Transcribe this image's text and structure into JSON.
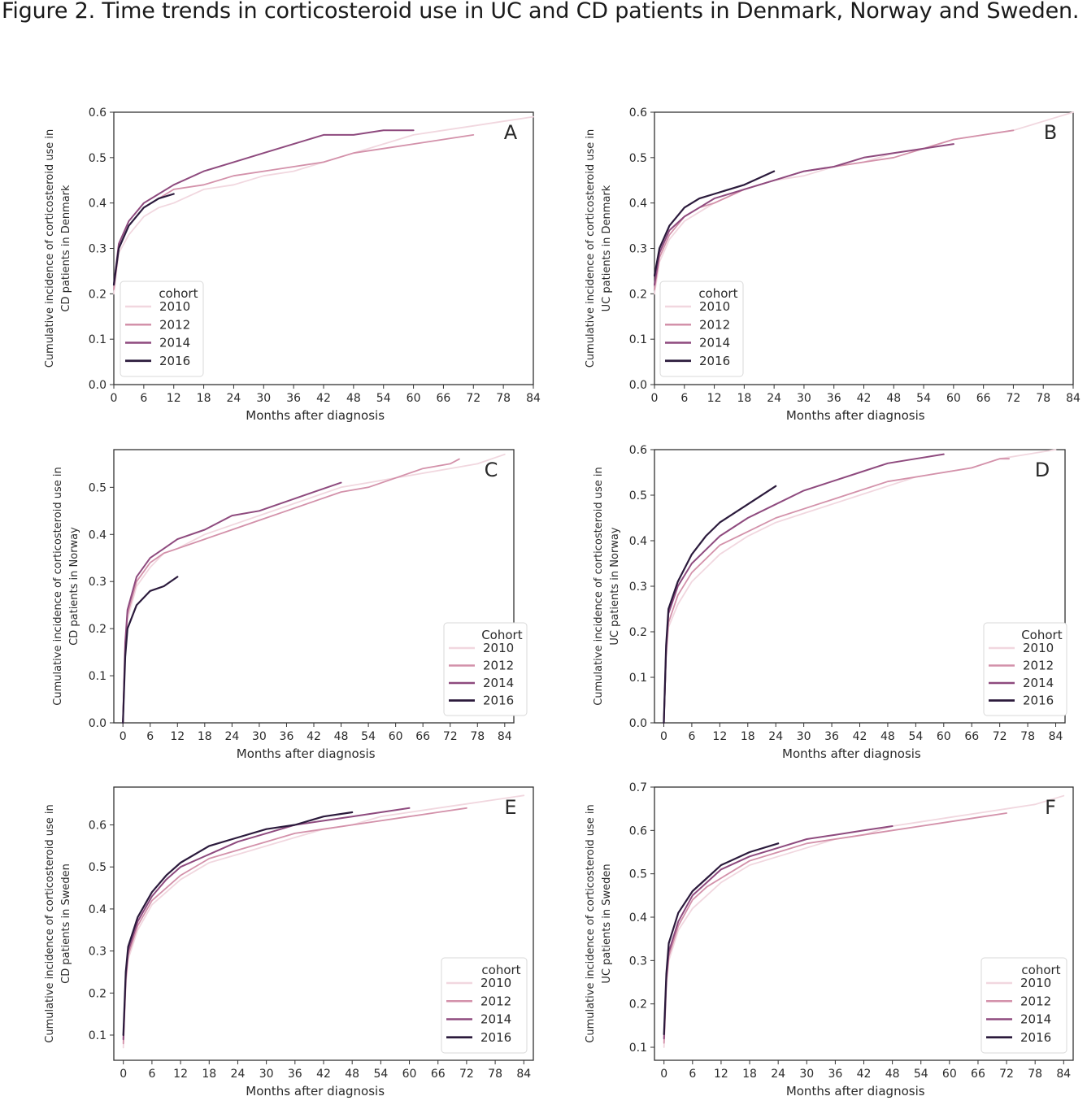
{
  "figure": {
    "title": "Figure 2. Time trends in corticosteroid use in UC and CD patients in Denmark, Norway and Sweden."
  },
  "colors": {
    "2010": "#f1d7df",
    "2012": "#d391aa",
    "2014": "#8e4a7e",
    "2016": "#2b1a3c",
    "axes": "#333333"
  },
  "chart_data": [
    {
      "panel": "A",
      "type": "line",
      "xlabel": "Months after diagnosis",
      "ylabel": "Cumulative incidence of corticosteroid use in CD patients in Denmark",
      "xlim": [
        0,
        84
      ],
      "ylim": [
        0.0,
        0.6
      ],
      "xticks": [
        0,
        6,
        12,
        18,
        24,
        30,
        36,
        42,
        48,
        54,
        60,
        66,
        72,
        78,
        84
      ],
      "yticks": [
        "0.0",
        "0.1",
        "0.2",
        "0.3",
        "0.4",
        "0.5",
        "0.6"
      ],
      "legend": {
        "title": "cohort",
        "location": "lower-left"
      },
      "series": [
        {
          "name": "2010",
          "x": [
            0,
            1,
            3,
            6,
            9,
            12,
            18,
            24,
            30,
            36,
            42,
            48,
            54,
            60,
            66,
            72,
            78,
            84
          ],
          "y": [
            0.2,
            0.29,
            0.33,
            0.37,
            0.39,
            0.4,
            0.43,
            0.44,
            0.46,
            0.47,
            0.49,
            0.51,
            0.53,
            0.55,
            0.56,
            0.57,
            0.58,
            0.59
          ]
        },
        {
          "name": "2012",
          "x": [
            0,
            1,
            3,
            6,
            9,
            12,
            18,
            24,
            30,
            36,
            42,
            48,
            54,
            60,
            66,
            72
          ],
          "y": [
            0.21,
            0.3,
            0.35,
            0.39,
            0.41,
            0.43,
            0.44,
            0.46,
            0.47,
            0.48,
            0.49,
            0.51,
            0.52,
            0.53,
            0.54,
            0.55
          ]
        },
        {
          "name": "2014",
          "x": [
            0,
            1,
            3,
            6,
            9,
            12,
            18,
            24,
            30,
            36,
            42,
            48,
            54,
            60
          ],
          "y": [
            0.22,
            0.31,
            0.36,
            0.4,
            0.42,
            0.44,
            0.47,
            0.49,
            0.51,
            0.53,
            0.55,
            0.55,
            0.56,
            0.56
          ]
        },
        {
          "name": "2016",
          "x": [
            0,
            1,
            3,
            6,
            9,
            12
          ],
          "y": [
            0.22,
            0.3,
            0.35,
            0.39,
            0.41,
            0.42
          ]
        }
      ]
    },
    {
      "panel": "B",
      "type": "line",
      "xlabel": "Months after diagnosis",
      "ylabel": "Cumulative incidence of corticosteroid use in UC patients in Denmark",
      "xlim": [
        0,
        84
      ],
      "ylim": [
        0.0,
        0.6
      ],
      "xticks": [
        0,
        6,
        12,
        18,
        24,
        30,
        36,
        42,
        48,
        54,
        60,
        66,
        72,
        78,
        84
      ],
      "yticks": [
        "0.0",
        "0.1",
        "0.2",
        "0.3",
        "0.4",
        "0.5",
        "0.6"
      ],
      "legend": {
        "title": "cohort",
        "location": "lower-left"
      },
      "series": [
        {
          "name": "2010",
          "x": [
            0,
            1,
            3,
            6,
            9,
            12,
            18,
            24,
            30,
            36,
            42,
            48,
            54,
            60,
            66,
            72,
            78,
            84
          ],
          "y": [
            0.2,
            0.27,
            0.32,
            0.36,
            0.38,
            0.4,
            0.43,
            0.45,
            0.46,
            0.48,
            0.49,
            0.51,
            0.52,
            0.54,
            0.55,
            0.56,
            0.58,
            0.6
          ]
        },
        {
          "name": "2012",
          "x": [
            0,
            1,
            3,
            6,
            9,
            12,
            18,
            24,
            30,
            36,
            42,
            48,
            54,
            60,
            66,
            72
          ],
          "y": [
            0.21,
            0.28,
            0.33,
            0.37,
            0.39,
            0.4,
            0.43,
            0.45,
            0.47,
            0.48,
            0.49,
            0.5,
            0.52,
            0.54,
            0.55,
            0.56
          ]
        },
        {
          "name": "2014",
          "x": [
            0,
            1,
            3,
            6,
            9,
            12,
            18,
            24,
            30,
            36,
            42,
            48,
            54,
            60
          ],
          "y": [
            0.22,
            0.29,
            0.34,
            0.37,
            0.39,
            0.41,
            0.43,
            0.45,
            0.47,
            0.48,
            0.5,
            0.51,
            0.52,
            0.53
          ]
        },
        {
          "name": "2016",
          "x": [
            0,
            1,
            3,
            6,
            9,
            12,
            18,
            24
          ],
          "y": [
            0.24,
            0.3,
            0.35,
            0.39,
            0.41,
            0.42,
            0.44,
            0.47
          ]
        }
      ]
    },
    {
      "panel": "C",
      "type": "line",
      "xlabel": "Months after diagnosis",
      "ylabel": "Cumulative incidence of corticosteroid use in CD patients in Norway",
      "xlim": [
        -2,
        86
      ],
      "ylim": [
        0.0,
        0.58
      ],
      "xticks": [
        0,
        6,
        12,
        18,
        24,
        30,
        36,
        42,
        48,
        54,
        60,
        66,
        72,
        78,
        84
      ],
      "yticks": [
        "0.0",
        "0.1",
        "0.2",
        "0.3",
        "0.4",
        "0.5"
      ],
      "legend": {
        "title": "Cohort",
        "location": "lower-right"
      },
      "series": [
        {
          "name": "2010",
          "x": [
            0,
            0.5,
            1,
            3,
            6,
            9,
            12,
            18,
            24,
            30,
            36,
            42,
            48,
            54,
            60,
            66,
            72,
            78,
            84
          ],
          "y": [
            0.0,
            0.15,
            0.22,
            0.29,
            0.33,
            0.36,
            0.37,
            0.4,
            0.42,
            0.44,
            0.46,
            0.48,
            0.5,
            0.51,
            0.52,
            0.53,
            0.54,
            0.55,
            0.57
          ]
        },
        {
          "name": "2012",
          "x": [
            0,
            0.5,
            1,
            3,
            6,
            9,
            12,
            18,
            24,
            30,
            36,
            42,
            48,
            54,
            60,
            66,
            72,
            74
          ],
          "y": [
            0.0,
            0.16,
            0.23,
            0.3,
            0.34,
            0.36,
            0.37,
            0.39,
            0.41,
            0.43,
            0.45,
            0.47,
            0.49,
            0.5,
            0.52,
            0.54,
            0.55,
            0.56
          ]
        },
        {
          "name": "2014",
          "x": [
            0,
            0.5,
            1,
            3,
            6,
            9,
            12,
            18,
            24,
            30,
            36,
            42,
            48
          ],
          "y": [
            0.0,
            0.17,
            0.24,
            0.31,
            0.35,
            0.37,
            0.39,
            0.41,
            0.44,
            0.45,
            0.47,
            0.49,
            0.51
          ]
        },
        {
          "name": "2016",
          "x": [
            0,
            0.5,
            1,
            3,
            6,
            9,
            12
          ],
          "y": [
            0.0,
            0.14,
            0.2,
            0.25,
            0.28,
            0.29,
            0.31
          ]
        }
      ]
    },
    {
      "panel": "D",
      "type": "line",
      "xlabel": "Months after diagnosis",
      "ylabel": "Cumulative incidence of corticosteroid use in UC patients in Norway",
      "xlim": [
        -2,
        86
      ],
      "ylim": [
        0.0,
        0.6
      ],
      "xticks": [
        0,
        6,
        12,
        18,
        24,
        30,
        36,
        42,
        48,
        54,
        60,
        66,
        72,
        78,
        84
      ],
      "yticks": [
        "0.0",
        "0.1",
        "0.2",
        "0.3",
        "0.4",
        "0.5",
        "0.6"
      ],
      "legend": {
        "title": "Cohort",
        "location": "lower-right"
      },
      "series": [
        {
          "name": "2010",
          "x": [
            0,
            0.5,
            1,
            3,
            6,
            9,
            12,
            18,
            24,
            30,
            36,
            42,
            48,
            54,
            60,
            66,
            72,
            78,
            84
          ],
          "y": [
            0.0,
            0.14,
            0.21,
            0.26,
            0.31,
            0.34,
            0.37,
            0.41,
            0.44,
            0.46,
            0.48,
            0.5,
            0.52,
            0.54,
            0.55,
            0.56,
            0.58,
            0.59,
            0.6
          ]
        },
        {
          "name": "2012",
          "x": [
            0,
            0.5,
            1,
            3,
            6,
            9,
            12,
            18,
            24,
            30,
            36,
            42,
            48,
            54,
            60,
            66,
            72,
            74
          ],
          "y": [
            0.0,
            0.15,
            0.22,
            0.28,
            0.33,
            0.36,
            0.39,
            0.42,
            0.45,
            0.47,
            0.49,
            0.51,
            0.53,
            0.54,
            0.55,
            0.56,
            0.58,
            0.58
          ]
        },
        {
          "name": "2014",
          "x": [
            0,
            0.5,
            1,
            3,
            6,
            9,
            12,
            18,
            24,
            30,
            36,
            42,
            48,
            54,
            60
          ],
          "y": [
            0.0,
            0.16,
            0.24,
            0.3,
            0.35,
            0.38,
            0.41,
            0.45,
            0.48,
            0.51,
            0.53,
            0.55,
            0.57,
            0.58,
            0.59
          ]
        },
        {
          "name": "2016",
          "x": [
            0,
            0.5,
            1,
            3,
            6,
            9,
            12,
            18,
            24
          ],
          "y": [
            0.0,
            0.17,
            0.25,
            0.31,
            0.37,
            0.41,
            0.44,
            0.48,
            0.52
          ]
        }
      ]
    },
    {
      "panel": "E",
      "type": "line",
      "xlabel": "Months after diagnosis",
      "ylabel": "Cumulative incidence of corticosteroid use in CD patients in Sweden",
      "xlim": [
        -2,
        86
      ],
      "ylim": [
        0.04,
        0.69
      ],
      "xticks": [
        0,
        6,
        12,
        18,
        24,
        30,
        36,
        42,
        48,
        54,
        60,
        66,
        72,
        78,
        84
      ],
      "yticks": [
        "0.1",
        "0.2",
        "0.3",
        "0.4",
        "0.5",
        "0.6"
      ],
      "legend": {
        "title": "cohort",
        "location": "lower-right"
      },
      "series": [
        {
          "name": "2010",
          "x": [
            0,
            0.5,
            1,
            3,
            6,
            9,
            12,
            18,
            24,
            30,
            36,
            42,
            48,
            54,
            60,
            66,
            72,
            78,
            84
          ],
          "y": [
            0.07,
            0.22,
            0.28,
            0.35,
            0.41,
            0.44,
            0.47,
            0.51,
            0.53,
            0.55,
            0.57,
            0.59,
            0.6,
            0.62,
            0.63,
            0.64,
            0.65,
            0.66,
            0.67
          ]
        },
        {
          "name": "2012",
          "x": [
            0,
            0.5,
            1,
            3,
            6,
            9,
            12,
            18,
            24,
            30,
            36,
            42,
            48,
            54,
            60,
            66,
            72
          ],
          "y": [
            0.08,
            0.23,
            0.29,
            0.36,
            0.42,
            0.45,
            0.48,
            0.52,
            0.54,
            0.56,
            0.58,
            0.59,
            0.6,
            0.61,
            0.62,
            0.63,
            0.64
          ]
        },
        {
          "name": "2014",
          "x": [
            0,
            0.5,
            1,
            3,
            6,
            9,
            12,
            18,
            24,
            30,
            36,
            42,
            48,
            54,
            60
          ],
          "y": [
            0.09,
            0.24,
            0.3,
            0.37,
            0.43,
            0.47,
            0.5,
            0.53,
            0.56,
            0.58,
            0.6,
            0.61,
            0.62,
            0.63,
            0.64
          ]
        },
        {
          "name": "2016",
          "x": [
            0,
            0.5,
            1,
            3,
            6,
            9,
            12,
            18,
            24,
            30,
            36,
            42,
            48
          ],
          "y": [
            0.1,
            0.25,
            0.31,
            0.38,
            0.44,
            0.48,
            0.51,
            0.55,
            0.57,
            0.59,
            0.6,
            0.62,
            0.63
          ]
        }
      ]
    },
    {
      "panel": "F",
      "type": "line",
      "xlabel": "Months after diagnosis",
      "ylabel": "Cumulative incidence of corticosteroid use in UC patients in Sweden",
      "xlim": [
        -2,
        86
      ],
      "ylim": [
        0.07,
        0.7
      ],
      "xticks": [
        0,
        6,
        12,
        18,
        24,
        30,
        36,
        42,
        48,
        54,
        60,
        66,
        72,
        78,
        84
      ],
      "yticks": [
        "0.1",
        "0.2",
        "0.3",
        "0.4",
        "0.5",
        "0.6",
        "0.7"
      ],
      "legend": {
        "title": "cohort",
        "location": "lower-right"
      },
      "series": [
        {
          "name": "2010",
          "x": [
            0,
            0.5,
            1,
            3,
            6,
            9,
            12,
            18,
            24,
            30,
            36,
            42,
            48,
            54,
            60,
            66,
            72,
            78,
            84
          ],
          "y": [
            0.1,
            0.24,
            0.3,
            0.37,
            0.42,
            0.45,
            0.48,
            0.52,
            0.54,
            0.56,
            0.58,
            0.59,
            0.61,
            0.62,
            0.63,
            0.64,
            0.65,
            0.66,
            0.68
          ]
        },
        {
          "name": "2012",
          "x": [
            0,
            0.5,
            1,
            3,
            6,
            9,
            12,
            18,
            24,
            30,
            36,
            42,
            48,
            54,
            60,
            66,
            72
          ],
          "y": [
            0.11,
            0.25,
            0.31,
            0.38,
            0.44,
            0.47,
            0.49,
            0.53,
            0.55,
            0.57,
            0.58,
            0.59,
            0.6,
            0.61,
            0.62,
            0.63,
            0.64
          ]
        },
        {
          "name": "2014",
          "x": [
            0,
            0.5,
            1,
            3,
            6,
            9,
            12,
            18,
            24,
            30,
            36,
            42,
            48
          ],
          "y": [
            0.12,
            0.26,
            0.32,
            0.39,
            0.45,
            0.48,
            0.51,
            0.54,
            0.56,
            0.58,
            0.59,
            0.6,
            0.61
          ]
        },
        {
          "name": "2016",
          "x": [
            0,
            0.5,
            1,
            3,
            6,
            9,
            12,
            18,
            24
          ],
          "y": [
            0.13,
            0.27,
            0.34,
            0.41,
            0.46,
            0.49,
            0.52,
            0.55,
            0.57
          ]
        }
      ]
    }
  ]
}
